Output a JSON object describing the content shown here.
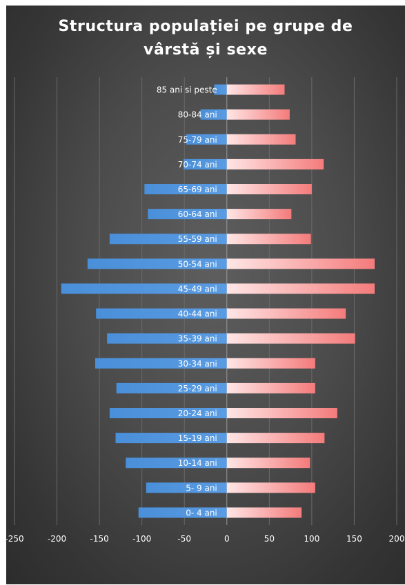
{
  "chart_data": {
    "type": "bar",
    "orientation": "horizontal",
    "layout": "population-pyramid",
    "title_lines": [
      "Structura populației pe grupe de",
      "vârstă și sexe"
    ],
    "categories": [
      "0- 4 ani",
      "5- 9 ani",
      "10-14 ani",
      "15-19 ani",
      "20-24 ani",
      "25-29 ani",
      "30-34 ani",
      "35-39 ani",
      "40-44 ani",
      "45-49 ani",
      "50-54 ani",
      "55-59 ani",
      "60-64 ani",
      "65-69 ani",
      "70-74 ani",
      "75-79 ani",
      "80-84 ani",
      "85 ani si peste"
    ],
    "series": [
      {
        "color": "#4a8fd9",
        "values": [
          -104,
          -95,
          -119,
          -131,
          -138,
          -130,
          -155,
          -141,
          -154,
          -195,
          -164,
          -138,
          -93,
          -97,
          -51,
          -48,
          -31,
          -15
        ]
      },
      {
        "color": "#f47b7b",
        "values": [
          88,
          104,
          98,
          115,
          130,
          104,
          104,
          151,
          140,
          174,
          174,
          99,
          76,
          100,
          114,
          81,
          74,
          68
        ]
      }
    ],
    "xlim": [
      -250,
      200
    ],
    "xticks": [
      -250,
      -200,
      -150,
      -100,
      -50,
      0,
      50,
      100,
      150,
      200
    ],
    "grid": "vertical",
    "legend": "none"
  }
}
